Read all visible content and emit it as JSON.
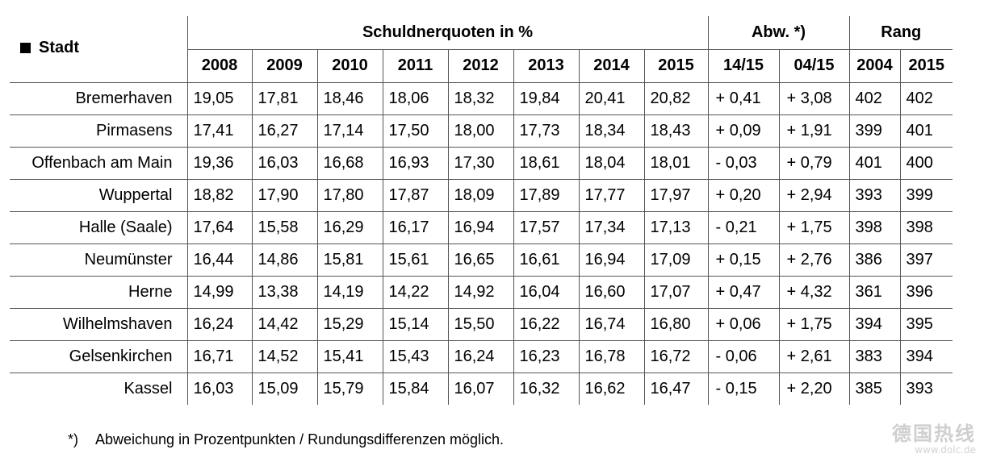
{
  "table": {
    "header": {
      "stadt": "Stadt",
      "quotes_group": "Schuldnerquoten in %",
      "abw_group": "Abw. *)",
      "rang_group": "Rang",
      "years": [
        "2008",
        "2009",
        "2010",
        "2011",
        "2012",
        "2013",
        "2014",
        "2015"
      ],
      "abw_cols": [
        "14/15",
        "04/15"
      ],
      "rang_cols": [
        "2004",
        "2015"
      ]
    },
    "rows": [
      {
        "city": "Bremerhaven",
        "values": [
          "19,05",
          "17,81",
          "18,46",
          "18,06",
          "18,32",
          "19,84",
          "20,41",
          "20,82"
        ],
        "abw": [
          "+ 0,41",
          "+ 3,08"
        ],
        "rang": [
          "402",
          "402"
        ]
      },
      {
        "city": "Pirmasens",
        "values": [
          "17,41",
          "16,27",
          "17,14",
          "17,50",
          "18,00",
          "17,73",
          "18,34",
          "18,43"
        ],
        "abw": [
          "+ 0,09",
          "+ 1,91"
        ],
        "rang": [
          "399",
          "401"
        ]
      },
      {
        "city": "Offenbach am Main",
        "values": [
          "19,36",
          "16,03",
          "16,68",
          "16,93",
          "17,30",
          "18,61",
          "18,04",
          "18,01"
        ],
        "abw": [
          "- 0,03",
          "+ 0,79"
        ],
        "rang": [
          "401",
          "400"
        ]
      },
      {
        "city": "Wuppertal",
        "values": [
          "18,82",
          "17,90",
          "17,80",
          "17,87",
          "18,09",
          "17,89",
          "17,77",
          "17,97"
        ],
        "abw": [
          "+ 0,20",
          "+ 2,94"
        ],
        "rang": [
          "393",
          "399"
        ]
      },
      {
        "city": "Halle (Saale)",
        "values": [
          "17,64",
          "15,58",
          "16,29",
          "16,17",
          "16,94",
          "17,57",
          "17,34",
          "17,13"
        ],
        "abw": [
          "- 0,21",
          "+ 1,75"
        ],
        "rang": [
          "398",
          "398"
        ]
      },
      {
        "city": "Neumünster",
        "values": [
          "16,44",
          "14,86",
          "15,81",
          "15,61",
          "16,65",
          "16,61",
          "16,94",
          "17,09"
        ],
        "abw": [
          "+ 0,15",
          "+ 2,76"
        ],
        "rang": [
          "386",
          "397"
        ]
      },
      {
        "city": "Herne",
        "values": [
          "14,99",
          "13,38",
          "14,19",
          "14,22",
          "14,92",
          "16,04",
          "16,60",
          "17,07"
        ],
        "abw": [
          "+ 0,47",
          "+ 4,32"
        ],
        "rang": [
          "361",
          "396"
        ]
      },
      {
        "city": "Wilhelmshaven",
        "values": [
          "16,24",
          "14,42",
          "15,29",
          "15,14",
          "15,50",
          "16,22",
          "16,74",
          "16,80"
        ],
        "abw": [
          "+ 0,06",
          "+ 1,75"
        ],
        "rang": [
          "394",
          "395"
        ]
      },
      {
        "city": "Gelsenkirchen",
        "values": [
          "16,71",
          "14,52",
          "15,41",
          "15,43",
          "16,24",
          "16,23",
          "16,78",
          "16,72"
        ],
        "abw": [
          "- 0,06",
          "+ 2,61"
        ],
        "rang": [
          "383",
          "394"
        ]
      },
      {
        "city": "Kassel",
        "values": [
          "16,03",
          "15,09",
          "15,79",
          "15,84",
          "16,07",
          "16,32",
          "16,62",
          "16,47"
        ],
        "abw": [
          "- 0,15",
          "+ 2,20"
        ],
        "rang": [
          "385",
          "393"
        ]
      }
    ]
  },
  "footnote": {
    "mark": "*)",
    "text": "Abweichung in Prozentpunkten / Rundungsdifferenzen möglich."
  },
  "watermark": {
    "text": "德国热线",
    "url": "www.dolc.de"
  }
}
